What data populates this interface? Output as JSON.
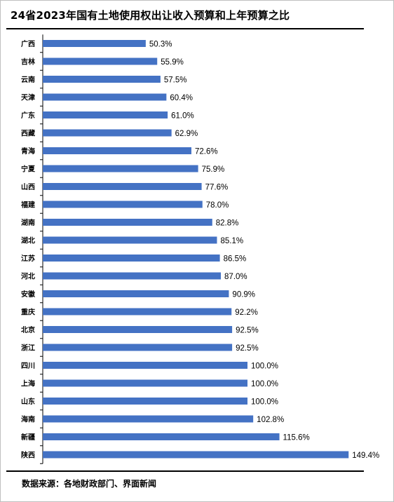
{
  "title": "24省2023年国有土地使用权出让收入预算和上年预算之比",
  "source": "数据来源：各地财政部门、界面新闻",
  "colors": {
    "bar": "#4472c4",
    "axis": "#000000",
    "text": "#000000"
  },
  "chart_data": {
    "type": "bar",
    "orientation": "horizontal",
    "title": "24省2023年国有土地使用权出让收入预算和上年预算之比",
    "xlabel": "",
    "ylabel": "",
    "value_suffix": "%",
    "grid": false,
    "legend": "none",
    "categories": [
      "广西",
      "吉林",
      "云南",
      "天津",
      "广东",
      "西藏",
      "青海",
      "宁夏",
      "山西",
      "福建",
      "湖南",
      "湖北",
      "江苏",
      "河北",
      "安徽",
      "重庆",
      "北京",
      "浙江",
      "四川",
      "上海",
      "山东",
      "海南",
      "新疆",
      "陕西"
    ],
    "values": [
      50.3,
      55.9,
      57.5,
      60.4,
      61.0,
      62.9,
      72.6,
      75.9,
      77.6,
      78.0,
      82.8,
      85.1,
      86.5,
      87.0,
      90.9,
      92.2,
      92.5,
      92.5,
      100.0,
      100.0,
      100.0,
      102.8,
      115.6,
      149.4
    ],
    "labels": [
      "50.3%",
      "55.9%",
      "57.5%",
      "60.4%",
      "61.0%",
      "62.9%",
      "72.6%",
      "75.9%",
      "77.6%",
      "78.0%",
      "82.8%",
      "85.1%",
      "86.5%",
      "87.0%",
      "90.9%",
      "92.2%",
      "92.5%",
      "92.5%",
      "100.0%",
      "100.0%",
      "100.0%",
      "102.8%",
      "115.6%",
      "149.4%"
    ]
  }
}
